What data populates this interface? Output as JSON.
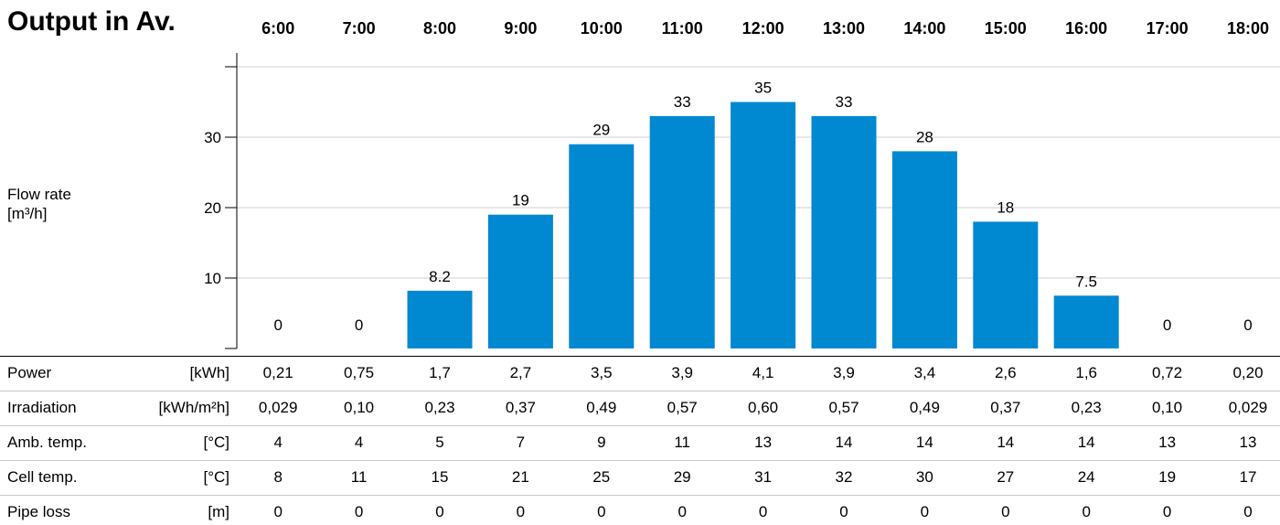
{
  "chart_data": {
    "type": "bar",
    "title": "Output in Av.",
    "ylabel": "Flow rate\n[m³/h]",
    "categories": [
      "6:00",
      "7:00",
      "8:00",
      "9:00",
      "10:00",
      "11:00",
      "12:00",
      "13:00",
      "14:00",
      "15:00",
      "16:00",
      "17:00",
      "18:00"
    ],
    "values": [
      0,
      0,
      8.2,
      19,
      29,
      33,
      35,
      33,
      28,
      18,
      7.5,
      0,
      0
    ],
    "value_labels": [
      "0",
      "0",
      "8.2",
      "19",
      "29",
      "33",
      "35",
      "33",
      "28",
      "18",
      "7.5",
      "0",
      "0"
    ],
    "yticks": [
      10,
      20,
      30
    ],
    "ylim": [
      0,
      40
    ],
    "grid": true,
    "bar_color": "#0088d1"
  },
  "table": {
    "rows": [
      {
        "label": "Power",
        "unit": "[kWh]",
        "values": [
          "0,21",
          "0,75",
          "1,7",
          "2,7",
          "3,5",
          "3,9",
          "4,1",
          "3,9",
          "3,4",
          "2,6",
          "1,6",
          "0,72",
          "0,20"
        ]
      },
      {
        "label": "Irradiation",
        "unit": "[kWh/m²h]",
        "values": [
          "0,029",
          "0,10",
          "0,23",
          "0,37",
          "0,49",
          "0,57",
          "0,60",
          "0,57",
          "0,49",
          "0,37",
          "0,23",
          "0,10",
          "0,029"
        ]
      },
      {
        "label": "Amb. temp.",
        "unit": "[°C]",
        "values": [
          "4",
          "4",
          "5",
          "7",
          "9",
          "11",
          "13",
          "14",
          "14",
          "14",
          "14",
          "13",
          "13"
        ]
      },
      {
        "label": "Cell temp.",
        "unit": "[°C]",
        "values": [
          "8",
          "11",
          "15",
          "21",
          "25",
          "29",
          "31",
          "32",
          "30",
          "27",
          "24",
          "19",
          "17"
        ]
      },
      {
        "label": "Pipe loss",
        "unit": "[m]",
        "values": [
          "0",
          "0",
          "0",
          "0",
          "0",
          "0",
          "0",
          "0",
          "0",
          "0",
          "0",
          "0",
          "0"
        ]
      }
    ]
  }
}
